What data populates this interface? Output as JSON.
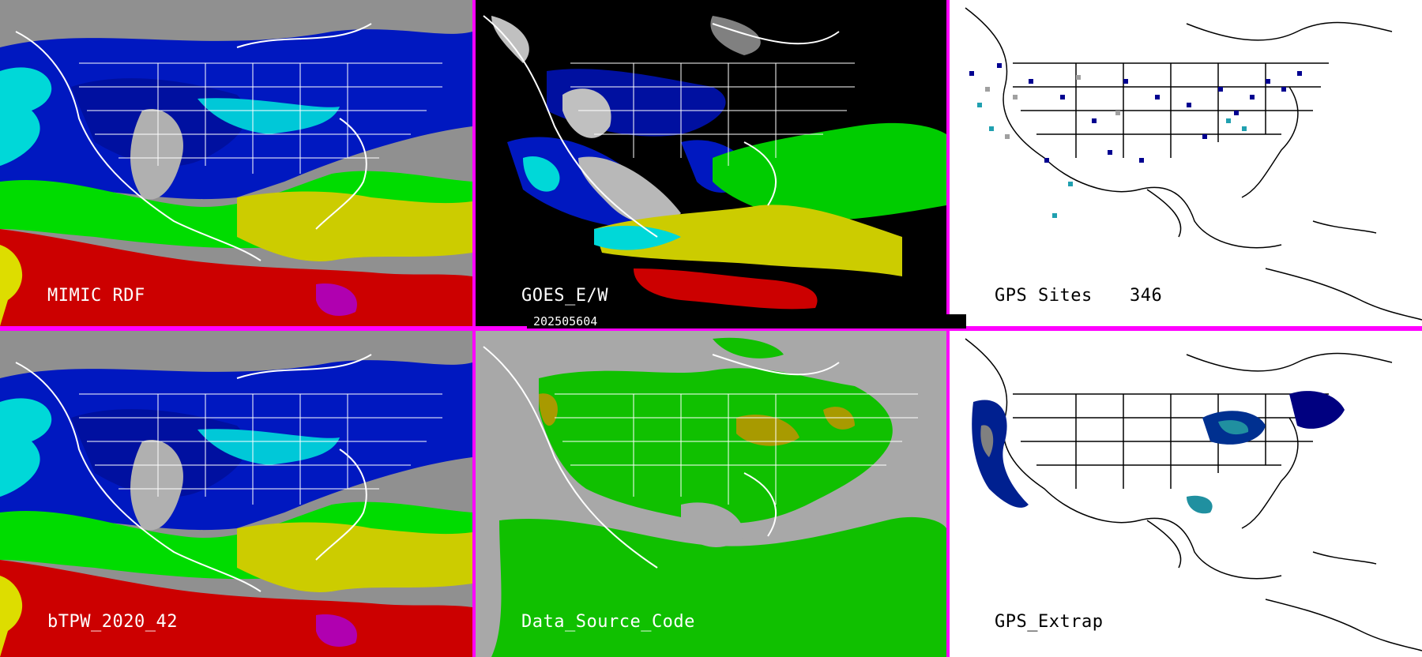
{
  "panels": [
    {
      "id": "mimic-rdf",
      "label": "MIMIC RDF",
      "style": "tpw"
    },
    {
      "id": "goes-ew",
      "label": "GOES_E/W",
      "style": "goes"
    },
    {
      "id": "gps-sites",
      "label": "GPS Sites",
      "count": "346",
      "style": "gps"
    },
    {
      "id": "btpw",
      "label": "bTPW_2020_42",
      "style": "tpw"
    },
    {
      "id": "data-source",
      "label": "Data_Source_Code",
      "style": "source"
    },
    {
      "id": "gps-extrap",
      "label": "GPS_Extrap",
      "style": "extrap"
    }
  ],
  "timestamp": "202505604",
  "colors": {
    "border": "#ff00ff",
    "red": "#d40000",
    "yellow": "#d8d800",
    "green": "#00e000",
    "cyan": "#00e8e8",
    "blue": "#0010c8",
    "navy": "#000080",
    "gray": "#a8a8a8",
    "olive": "#a89a00",
    "source_green": "#10c000"
  }
}
